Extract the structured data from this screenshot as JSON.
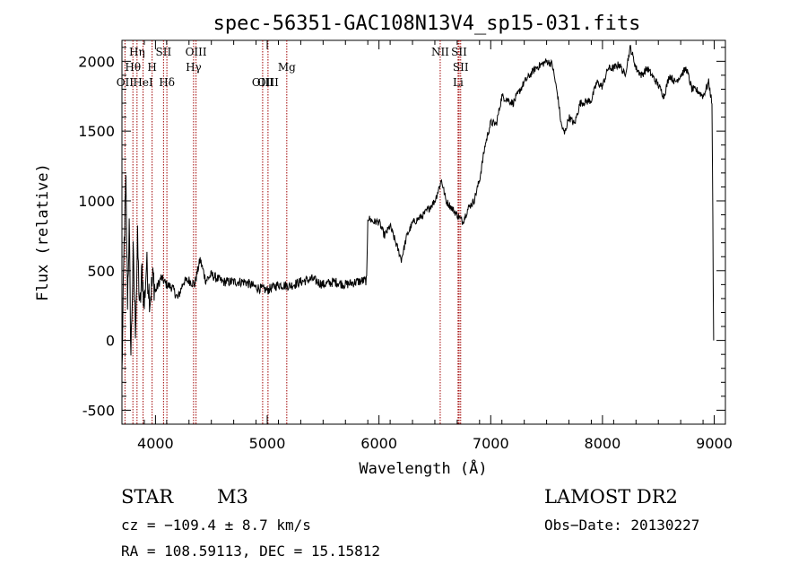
{
  "chart_data": {
    "type": "line",
    "title": "spec-56351-GAC108N13V4_sp15-031.fits",
    "xlabel": "Wavelength (Å)",
    "ylabel": "Flux (relative)",
    "xlim": [
      3700,
      9100
    ],
    "ylim": [
      -600,
      2150
    ],
    "x_ticks": [
      "4000",
      "5000",
      "6000",
      "7000",
      "8000",
      "9000"
    ],
    "y_ticks": [
      "-500",
      "0",
      "500",
      "1000",
      "1500",
      "2000"
    ],
    "grid": false,
    "line_markers": [
      {
        "label": "OII",
        "wavelength": 3727,
        "row": 3
      },
      {
        "label": "Hθ",
        "wavelength": 3798,
        "row": 2
      },
      {
        "label": "Hη",
        "wavelength": 3835,
        "row": 1
      },
      {
        "label": "HeI",
        "wavelength": 3889,
        "row": 3
      },
      {
        "label": "H",
        "wavelength": 3970,
        "row": 2
      },
      {
        "label": "SII",
        "wavelength": 4072,
        "row": 1
      },
      {
        "label": "Hδ",
        "wavelength": 4102,
        "row": 3
      },
      {
        "label": "OIII",
        "wavelength": 4363,
        "row": 1
      },
      {
        "label": "Hγ",
        "wavelength": 4341,
        "row": 2
      },
      {
        "label": "OIII",
        "wavelength": 4959,
        "row": 3
      },
      {
        "label": "OIII",
        "wavelength": 5007,
        "row": 3
      },
      {
        "label": "Mg",
        "wavelength": 5175,
        "row": 2
      },
      {
        "label": "NII",
        "wavelength": 6548,
        "row": 1
      },
      {
        "label": "SII",
        "wavelength": 6717,
        "row": 1
      },
      {
        "label": "SII",
        "wavelength": 6731,
        "row": 2
      },
      {
        "label": "Li",
        "wavelength": 6708,
        "row": 3
      }
    ],
    "spectrum_anchors": [
      [
        3700,
        -250
      ],
      [
        3720,
        700
      ],
      [
        3735,
        1100
      ],
      [
        3750,
        300
      ],
      [
        3765,
        800
      ],
      [
        3780,
        -100
      ],
      [
        3800,
        600
      ],
      [
        3820,
        100
      ],
      [
        3840,
        700
      ],
      [
        3860,
        200
      ],
      [
        3880,
        500
      ],
      [
        3900,
        250
      ],
      [
        3920,
        550
      ],
      [
        3950,
        300
      ],
      [
        3980,
        450
      ],
      [
        4000,
        350
      ],
      [
        4050,
        450
      ],
      [
        4100,
        400
      ],
      [
        4150,
        380
      ],
      [
        4200,
        300
      ],
      [
        4250,
        420
      ],
      [
        4300,
        430
      ],
      [
        4350,
        400
      ],
      [
        4400,
        580
      ],
      [
        4450,
        430
      ],
      [
        4500,
        470
      ],
      [
        4600,
        420
      ],
      [
        4700,
        420
      ],
      [
        4800,
        420
      ],
      [
        4900,
        380
      ],
      [
        5000,
        360
      ],
      [
        5100,
        400
      ],
      [
        5200,
        390
      ],
      [
        5300,
        420
      ],
      [
        5400,
        440
      ],
      [
        5500,
        400
      ],
      [
        5600,
        420
      ],
      [
        5700,
        400
      ],
      [
        5800,
        420
      ],
      [
        5890,
        430
      ],
      [
        5900,
        880
      ],
      [
        5950,
        850
      ],
      [
        6000,
        850
      ],
      [
        6050,
        750
      ],
      [
        6100,
        820
      ],
      [
        6150,
        700
      ],
      [
        6200,
        580
      ],
      [
        6250,
        750
      ],
      [
        6300,
        840
      ],
      [
        6400,
        900
      ],
      [
        6500,
        1000
      ],
      [
        6560,
        1150
      ],
      [
        6600,
        1000
      ],
      [
        6650,
        950
      ],
      [
        6700,
        900
      ],
      [
        6750,
        850
      ],
      [
        6800,
        950
      ],
      [
        6850,
        1000
      ],
      [
        6900,
        1150
      ],
      [
        6950,
        1400
      ],
      [
        7000,
        1560
      ],
      [
        7050,
        1550
      ],
      [
        7100,
        1750
      ],
      [
        7200,
        1700
      ],
      [
        7300,
        1850
      ],
      [
        7400,
        1950
      ],
      [
        7500,
        2000
      ],
      [
        7550,
        1980
      ],
      [
        7600,
        1750
      ],
      [
        7630,
        1550
      ],
      [
        7660,
        1480
      ],
      [
        7700,
        1600
      ],
      [
        7750,
        1550
      ],
      [
        7800,
        1700
      ],
      [
        7900,
        1720
      ],
      [
        7950,
        1850
      ],
      [
        8000,
        1820
      ],
      [
        8050,
        1950
      ],
      [
        8100,
        1950
      ],
      [
        8150,
        1980
      ],
      [
        8200,
        1900
      ],
      [
        8250,
        2100
      ],
      [
        8300,
        1950
      ],
      [
        8350,
        1900
      ],
      [
        8400,
        1950
      ],
      [
        8500,
        1830
      ],
      [
        8550,
        1750
      ],
      [
        8600,
        1900
      ],
      [
        8650,
        1850
      ],
      [
        8700,
        1900
      ],
      [
        8750,
        1950
      ],
      [
        8800,
        1800
      ],
      [
        8850,
        1790
      ],
      [
        8900,
        1750
      ],
      [
        8950,
        1850
      ],
      [
        8980,
        1700
      ],
      [
        8995,
        0
      ]
    ]
  },
  "info": {
    "object_class": "STAR",
    "subclass": "M3",
    "survey": "LAMOST DR2",
    "cz": "cz = −109.4 ± 8.7 km/s",
    "obs_date": "Obs−Date: 20130227",
    "coords": "RA = 108.59113, DEC =  15.15812"
  },
  "colors": {
    "axis": "#000000",
    "spectrum": "#000000",
    "marker_line": "#a00000"
  }
}
